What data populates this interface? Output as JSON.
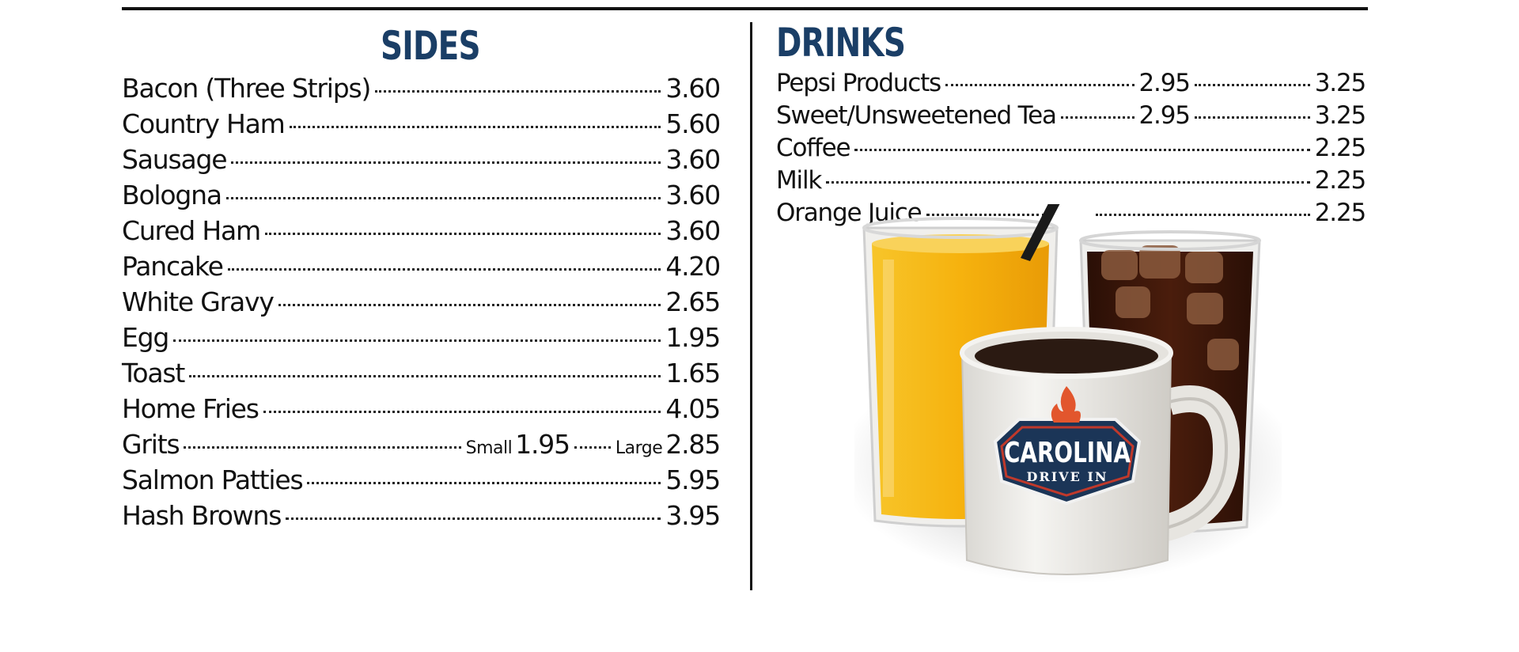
{
  "sides": {
    "heading": "SIDES",
    "items": [
      {
        "name": "Bacon (Three Strips)",
        "price": "3.60"
      },
      {
        "name": "Country Ham",
        "price": "5.60"
      },
      {
        "name": "Sausage",
        "price": "3.60"
      },
      {
        "name": "Bologna",
        "price": "3.60"
      },
      {
        "name": "Cured Ham",
        "price": "3.60"
      },
      {
        "name": "Pancake",
        "price": "4.20"
      },
      {
        "name": "White Gravy",
        "price": "2.65"
      },
      {
        "name": "Egg",
        "price": "1.95"
      },
      {
        "name": "Toast",
        "price": "1.65"
      },
      {
        "name": "Home Fries",
        "price": "4.05"
      },
      {
        "name": "Grits",
        "small_label": "Small",
        "small_price": "1.95",
        "large_label": "Large",
        "large_price": "2.85"
      },
      {
        "name": "Salmon Patties",
        "price": "5.95"
      },
      {
        "name": "Hash Browns",
        "price": "3.95"
      }
    ]
  },
  "drinks": {
    "heading": "DRINKS",
    "items": [
      {
        "name": "Pepsi Products",
        "price_1": "2.95",
        "price_2": "3.25"
      },
      {
        "name": "Sweet/Unsweetened Tea",
        "price_1": "2.95",
        "price_2": "3.25"
      },
      {
        "name": "Coffee",
        "price": "2.25"
      },
      {
        "name": "Milk",
        "price": "2.25"
      },
      {
        "name": "Orange Juice",
        "price": "2.25"
      }
    ]
  },
  "image": {
    "mug_logo_line1": "CAROLINA",
    "mug_logo_line2": "DRIVE IN",
    "colors": {
      "heading": "#1a3e66",
      "juice": "#f5b412",
      "cola": "#3a160a",
      "logo_navy": "#1b3557",
      "logo_red": "#c0392b"
    }
  }
}
